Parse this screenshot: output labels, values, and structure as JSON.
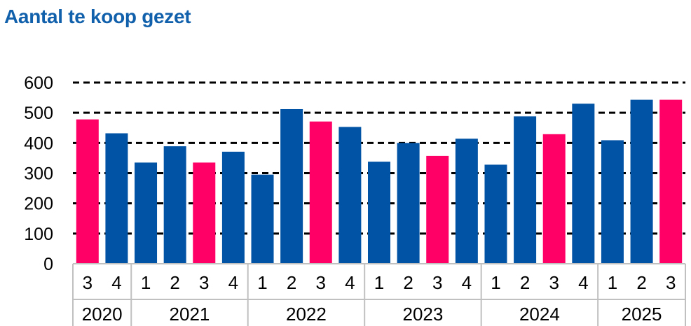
{
  "chart_data": {
    "type": "bar",
    "title": "Aantal te koop gezet",
    "xlabel": "",
    "ylabel": "",
    "ylim": [
      0,
      600
    ],
    "yticks": [
      "0",
      "100",
      "200",
      "300",
      "400",
      "500",
      "600"
    ],
    "grid": "dashed horizontal",
    "legend": "none",
    "groups": [
      {
        "label": "2020",
        "quarters": [
          "3",
          "4"
        ]
      },
      {
        "label": "2021",
        "quarters": [
          "1",
          "2",
          "3",
          "4"
        ]
      },
      {
        "label": "2022",
        "quarters": [
          "1",
          "2",
          "3",
          "4"
        ]
      },
      {
        "label": "2023",
        "quarters": [
          "1",
          "2",
          "3",
          "4"
        ]
      },
      {
        "label": "2024",
        "quarters": [
          "1",
          "2",
          "3",
          "4"
        ]
      },
      {
        "label": "2025",
        "quarters": [
          "1",
          "2",
          "3"
        ]
      }
    ],
    "values": [
      478,
      432,
      335,
      389,
      335,
      371,
      295,
      512,
      471,
      453,
      338,
      400,
      357,
      414,
      328,
      488,
      429,
      530,
      409,
      543,
      543
    ],
    "highlight_quarter": "3",
    "colors": {
      "default": "#0153A5",
      "highlight": "#FF0066",
      "title": "#1060AC",
      "axis": "#C0C0C0"
    }
  }
}
